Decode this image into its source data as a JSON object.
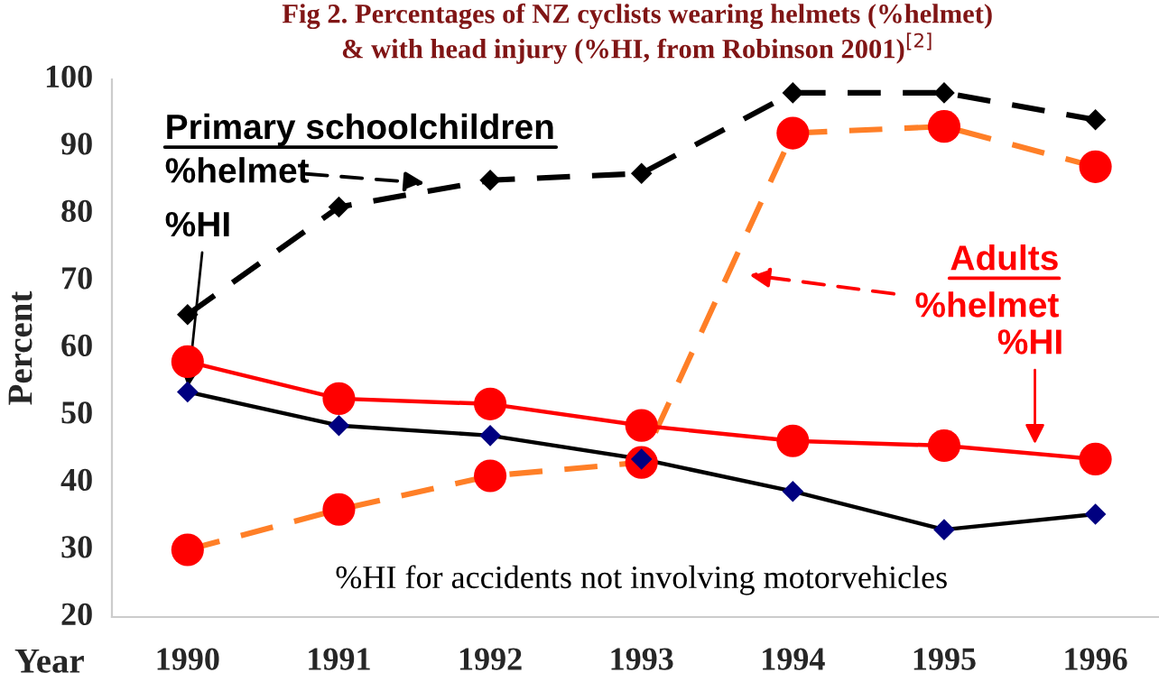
{
  "chart_data": {
    "type": "line",
    "title": "Fig 2. Percentages of NZ cyclists wearing helmets (%helmet)\n& with head injury (%HI, from Robinson 2001)$^{[2]}$",
    "xlabel": "Year",
    "ylabel": "Percent",
    "categories": [
      "1990",
      "1991",
      "1992",
      "1993",
      "1994",
      "1995",
      "1996"
    ],
    "series": [
      {
        "color": "#000000",
        "marker": "diamond",
        "line_style": "dashed",
        "values": [
          65,
          81,
          85,
          86,
          98,
          98,
          94
        ]
      },
      {
        "color": "#000000",
        "colors": [
          "#000080",
          "#000080",
          "#000080",
          "#000080",
          "#000080",
          "#000080",
          "#000080"
        ],
        "marker": "diamond",
        "line_style": "solid",
        "values": [
          53.5,
          48.5,
          47,
          43.5,
          38.7,
          33,
          35.3
        ]
      },
      {
        "color": "#ff7f27",
        "colors": [
          "#ff0000",
          "#ff0000",
          "#ff0000",
          "#ff0000",
          "#ff0000",
          "#ff0000",
          "#ff0000"
        ],
        "marker": "circle",
        "line_style": "dashed",
        "values": [
          30,
          36,
          41,
          43,
          92,
          93,
          87
        ]
      },
      {
        "color": "#ff0000",
        "marker": "circle",
        "line_style": "solid",
        "values": [
          58,
          52.5,
          51.7,
          48.5,
          46.2,
          45.5,
          43.5
        ]
      }
    ],
    "ylim": [
      20,
      100
    ],
    "yticks": [
      20,
      30,
      40,
      50,
      60,
      70,
      80,
      90,
      100
    ],
    "annotations": [
      "Primary schoolchildren",
      "%helmet",
      {
        "text": "%HI",
        "x": "1990",
        "y": 53.5
      },
      "Adults",
      "%helmet",
      {
        "text": "%HI",
        "y": 45
      },
      "%HI for accidents not involving motorvehicles"
    ]
  }
}
